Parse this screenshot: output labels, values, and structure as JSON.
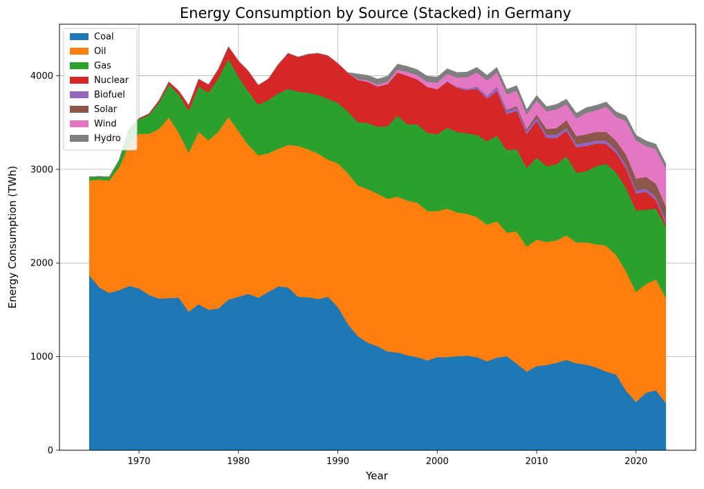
{
  "chart_data": {
    "type": "area",
    "stacked": true,
    "title": "Energy Consumption by Source (Stacked) in Germany",
    "xlabel": "Year",
    "ylabel": "Energy Consumption (TWh)",
    "xlim": [
      1962,
      2026
    ],
    "ylim": [
      0,
      4550
    ],
    "xticks": [
      1970,
      1980,
      1990,
      2000,
      2010,
      2020
    ],
    "yticks": [
      0,
      1000,
      2000,
      3000,
      4000
    ],
    "grid": true,
    "legend_position": "top-left",
    "x": [
      1965,
      1966,
      1967,
      1968,
      1969,
      1970,
      1971,
      1972,
      1973,
      1974,
      1975,
      1976,
      1977,
      1978,
      1979,
      1980,
      1981,
      1982,
      1983,
      1984,
      1985,
      1986,
      1987,
      1988,
      1989,
      1990,
      1991,
      1992,
      1993,
      1994,
      1995,
      1996,
      1997,
      1998,
      1999,
      2000,
      2001,
      2002,
      2003,
      2004,
      2005,
      2006,
      2007,
      2008,
      2009,
      2010,
      2011,
      2012,
      2013,
      2014,
      2015,
      2016,
      2017,
      2018,
      2019,
      2020,
      2021,
      2022,
      2023
    ],
    "series": [
      {
        "name": "Coal",
        "color": "#1f77b4",
        "values": [
          1870,
          1740,
          1680,
          1710,
          1755,
          1730,
          1660,
          1620,
          1625,
          1630,
          1480,
          1560,
          1500,
          1515,
          1610,
          1640,
          1670,
          1630,
          1690,
          1750,
          1740,
          1640,
          1635,
          1615,
          1640,
          1530,
          1350,
          1220,
          1150,
          1110,
          1055,
          1045,
          1015,
          995,
          960,
          995,
          995,
          1005,
          1010,
          995,
          950,
          990,
          1005,
          925,
          840,
          900,
          910,
          935,
          965,
          930,
          915,
          885,
          840,
          810,
          635,
          515,
          615,
          640,
          505
        ]
      },
      {
        "name": "Oil",
        "color": "#ff7f0e",
        "values": [
          1010,
          1150,
          1200,
          1310,
          1510,
          1650,
          1720,
          1810,
          1930,
          1760,
          1700,
          1840,
          1810,
          1890,
          1950,
          1770,
          1590,
          1520,
          1480,
          1470,
          1520,
          1610,
          1580,
          1555,
          1465,
          1535,
          1610,
          1610,
          1640,
          1630,
          1630,
          1665,
          1650,
          1650,
          1595,
          1560,
          1585,
          1535,
          1515,
          1495,
          1460,
          1455,
          1320,
          1410,
          1335,
          1350,
          1315,
          1305,
          1330,
          1290,
          1305,
          1315,
          1345,
          1275,
          1275,
          1175,
          1160,
          1185,
          1125
        ]
      },
      {
        "name": "Gas",
        "color": "#2ca02c",
        "values": [
          40,
          35,
          40,
          80,
          170,
          155,
          200,
          280,
          350,
          410,
          445,
          485,
          510,
          570,
          620,
          580,
          570,
          540,
          570,
          590,
          600,
          580,
          605,
          625,
          650,
          645,
          660,
          675,
          705,
          715,
          775,
          865,
          815,
          835,
          835,
          820,
          865,
          860,
          860,
          880,
          890,
          915,
          880,
          880,
          840,
          875,
          810,
          815,
          845,
          745,
          760,
          835,
          875,
          880,
          890,
          870,
          795,
          755,
          760
        ]
      },
      {
        "name": "Nuclear",
        "color": "#d62728",
        "values": [
          0,
          0,
          0,
          0,
          0,
          10,
          15,
          25,
          30,
          40,
          60,
          80,
          85,
          100,
          130,
          170,
          220,
          210,
          225,
          310,
          380,
          370,
          410,
          445,
          460,
          420,
          410,
          450,
          440,
          430,
          450,
          460,
          520,
          480,
          490,
          480,
          490,
          470,
          460,
          490,
          455,
          475,
          385,
          410,
          360,
          390,
          300,
          280,
          270,
          270,
          270,
          240,
          210,
          210,
          210,
          180,
          190,
          90,
          25
        ]
      },
      {
        "name": "Biofuel",
        "color": "#9467bd",
        "values": [
          0,
          0,
          0,
          0,
          0,
          0,
          0,
          0,
          0,
          0,
          0,
          0,
          0,
          0,
          0,
          0,
          0,
          0,
          0,
          0,
          0,
          0,
          0,
          0,
          0,
          0,
          0,
          0,
          0,
          0,
          0,
          0,
          0,
          0,
          0,
          0,
          5,
          10,
          15,
          25,
          30,
          40,
          35,
          35,
          35,
          35,
          35,
          35,
          35,
          35,
          35,
          35,
          35,
          35,
          35,
          35,
          35,
          35,
          35
        ]
      },
      {
        "name": "Solar",
        "color": "#8c564b",
        "values": [
          0,
          0,
          0,
          0,
          0,
          0,
          0,
          0,
          0,
          0,
          0,
          0,
          0,
          0,
          0,
          0,
          0,
          0,
          0,
          0,
          0,
          0,
          0,
          0,
          0,
          0,
          0,
          0,
          0,
          0,
          0,
          0,
          0,
          0,
          0,
          0,
          0,
          0,
          0,
          0,
          0,
          5,
          10,
          15,
          20,
          35,
          60,
          70,
          80,
          85,
          90,
          90,
          95,
          95,
          110,
          125,
          125,
          140,
          155
        ]
      },
      {
        "name": "Wind",
        "color": "#e377c2",
        "values": [
          0,
          0,
          0,
          0,
          0,
          0,
          0,
          0,
          0,
          0,
          0,
          0,
          0,
          0,
          0,
          0,
          0,
          0,
          0,
          0,
          0,
          0,
          0,
          0,
          0,
          5,
          5,
          10,
          15,
          20,
          25,
          30,
          40,
          45,
          55,
          70,
          80,
          100,
          125,
          150,
          165,
          155,
          165,
          165,
          155,
          150,
          190,
          200,
          170,
          190,
          230,
          230,
          270,
          255,
          360,
          410,
          330,
          370,
          400
        ]
      },
      {
        "name": "Hydro",
        "color": "#7f7f7f",
        "values": [
          0,
          0,
          0,
          0,
          0,
          0,
          0,
          0,
          0,
          0,
          0,
          0,
          0,
          0,
          0,
          0,
          0,
          0,
          0,
          0,
          0,
          0,
          0,
          0,
          0,
          0,
          0,
          55,
          55,
          60,
          60,
          60,
          60,
          60,
          60,
          60,
          55,
          55,
          55,
          55,
          55,
          55,
          55,
          55,
          55,
          55,
          50,
          55,
          55,
          55,
          55,
          55,
          50,
          55,
          55,
          55,
          55,
          55,
          55
        ]
      }
    ]
  }
}
